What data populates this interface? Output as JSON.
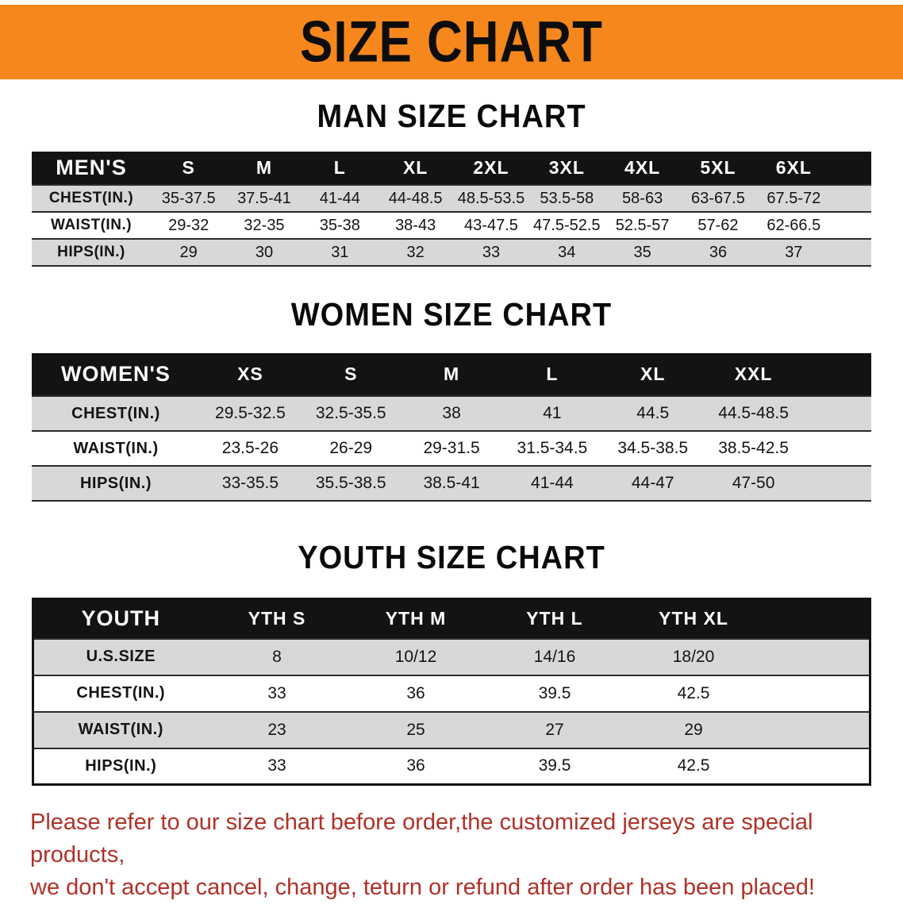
{
  "banner": {
    "title": "SIZE CHART",
    "background_color": "#f6871d",
    "text_color": "#0d0d0d"
  },
  "sections": [
    {
      "id": "men",
      "heading": "MAN SIZE CHART",
      "columns": [
        "MEN'S",
        "S",
        "M",
        "L",
        "XL",
        "2XL",
        "3XL",
        "4XL",
        "5XL",
        "6XL"
      ],
      "rows": [
        [
          "CHEST(IN.)",
          "35-37.5",
          "37.5-41",
          "41-44",
          "44-48.5",
          "48.5-53.5",
          "53.5-58",
          "58-63",
          "63-67.5",
          "67.5-72"
        ],
        [
          "WAIST(IN.)",
          "29-32",
          "32-35",
          "35-38",
          "38-43",
          "43-47.5",
          "47.5-52.5",
          "52.5-57",
          "57-62",
          "62-66.5"
        ],
        [
          "HIPS(IN.)",
          "29",
          "30",
          "31",
          "32",
          "33",
          "34",
          "35",
          "36",
          "37"
        ]
      ]
    },
    {
      "id": "women",
      "heading": "WOMEN SIZE CHART",
      "columns": [
        "WOMEN'S",
        "XS",
        "S",
        "M",
        "L",
        "XL",
        "XXL"
      ],
      "rows": [
        [
          "CHEST(IN.)",
          "29.5-32.5",
          "32.5-35.5",
          "38",
          "41",
          "44.5",
          "44.5-48.5"
        ],
        [
          "WAIST(IN.)",
          "23.5-26",
          "26-29",
          "29-31.5",
          "31.5-34.5",
          "34.5-38.5",
          "38.5-42.5"
        ],
        [
          "HIPS(IN.)",
          "33-35.5",
          "35.5-38.5",
          "38.5-41",
          "41-44",
          "44-47",
          "47-50"
        ]
      ]
    },
    {
      "id": "youth",
      "heading": "YOUTH SIZE CHART",
      "columns": [
        "YOUTH",
        "YTH S",
        "YTH M",
        "YTH L",
        "YTH XL"
      ],
      "rows": [
        [
          "U.S.SIZE",
          "8",
          "10/12",
          "14/16",
          "18/20"
        ],
        [
          "CHEST(IN.)",
          "33",
          "36",
          "39.5",
          "42.5"
        ],
        [
          "WAIST(IN.)",
          "23",
          "25",
          "27",
          "29"
        ],
        [
          "HIPS(IN.)",
          "33",
          "36",
          "39.5",
          "42.5"
        ]
      ]
    }
  ],
  "disclaimer": {
    "lines": [
      "Please refer to our size chart before order,the customized jerseys are special products,",
      "we don't accept cancel, change, teturn or refund after order has been placed!"
    ],
    "color": "#b03128"
  }
}
